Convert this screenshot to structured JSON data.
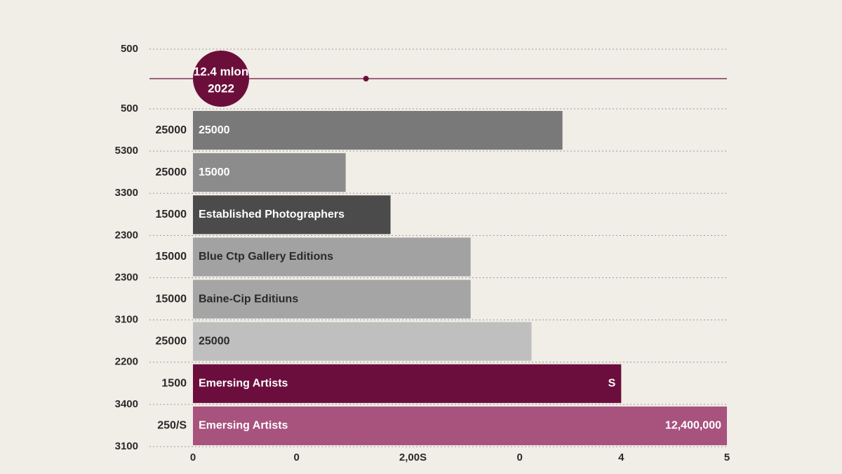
{
  "chart_data": {
    "type": "bar",
    "orientation": "horizontal",
    "categories": [
      "25000",
      "25000",
      "15000",
      "15000",
      "15000",
      "25000",
      "1500",
      "250/S"
    ],
    "values": [
      3.46,
      1.43,
      1.85,
      2.6,
      2.6,
      3.17,
      4.01,
      5
    ],
    "colors": [
      "#797979",
      "#8c8c8c",
      "#4b4b4b",
      "#a2a2a2",
      "#a5a5a5",
      "#bfbfbf",
      "#6c0e3d",
      "#a8527e"
    ],
    "label_colors": [
      "#ffffff",
      "#ffffff",
      "#ffffff",
      "#2a2a2a",
      "#2a2a2a",
      "#2a2a2a",
      "#ffffff",
      "#ffffff"
    ],
    "bar_labels": [
      "25000",
      "15000",
      "Established Photographers",
      "Blue Ctp Gallery Editions",
      "Baine-Cip Editiuns",
      "25000",
      "Emersing Artists",
      "Emersing Artists"
    ],
    "end_labels": [
      null,
      null,
      null,
      null,
      null,
      null,
      "S",
      "12,400,000"
    ],
    "gridline_labels": [
      "500",
      "500",
      "5300",
      "3300",
      "2300",
      "2300",
      "3100",
      "2200",
      "3400",
      "3100"
    ],
    "xlim": [
      0,
      5
    ],
    "xticks": [
      0,
      {
        "value": 0.97,
        "label": "0"
      },
      {
        "value": 2.06,
        "label": "2,00S"
      },
      {
        "value": 3.06,
        "label": "0"
      },
      {
        "value": 4.01,
        "label": "4"
      },
      5
    ],
    "annotation": {
      "value_text": "12.4 mlon",
      "year": "2022",
      "marker": 1.62,
      "color": "#6b0f3a"
    }
  }
}
